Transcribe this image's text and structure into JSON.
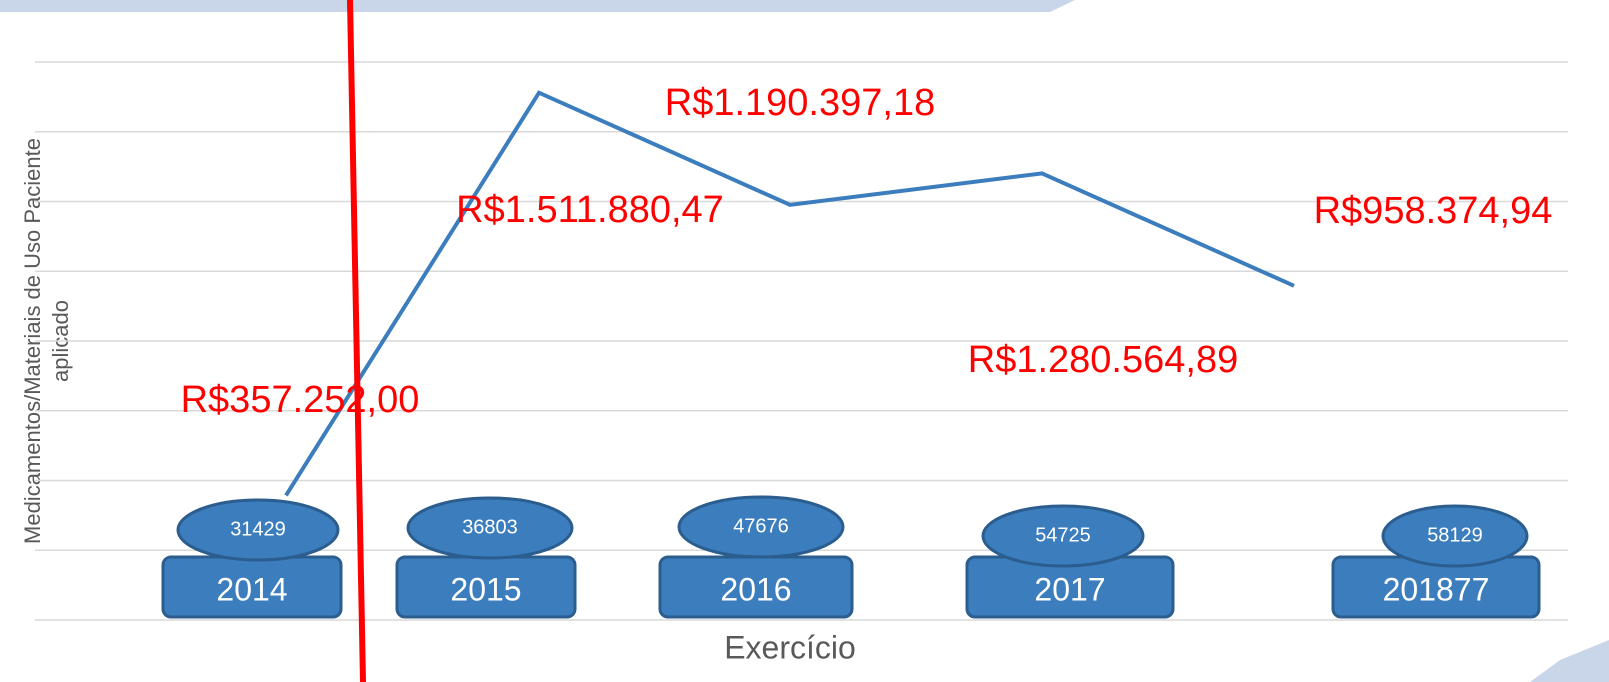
{
  "chart_data": {
    "type": "line",
    "y_label": [
      "Medicamentos/Materiais de Uso Paciente",
      "aplicado"
    ],
    "x_label": "Exercício",
    "categories": [
      "2014",
      "2015",
      "2016",
      "2017",
      "201877"
    ],
    "values": [
      357252.0,
      1511880.47,
      1190397.18,
      1280564.89,
      958374.94
    ],
    "value_labels": [
      "R$357.252,00",
      "R$1.511.880,47",
      "R$1.190.397,18",
      "R$1.280.564,89",
      "R$958.374,94"
    ],
    "counts": [
      31429,
      36803,
      47676,
      54725,
      58129
    ],
    "color": "#3b7dbd",
    "ylim": [
      0,
      1600000
    ],
    "yticks": [
      0,
      200000,
      400000,
      600000,
      800000,
      1000000,
      1200000,
      1400000,
      1600000
    ],
    "grid": true
  }
}
